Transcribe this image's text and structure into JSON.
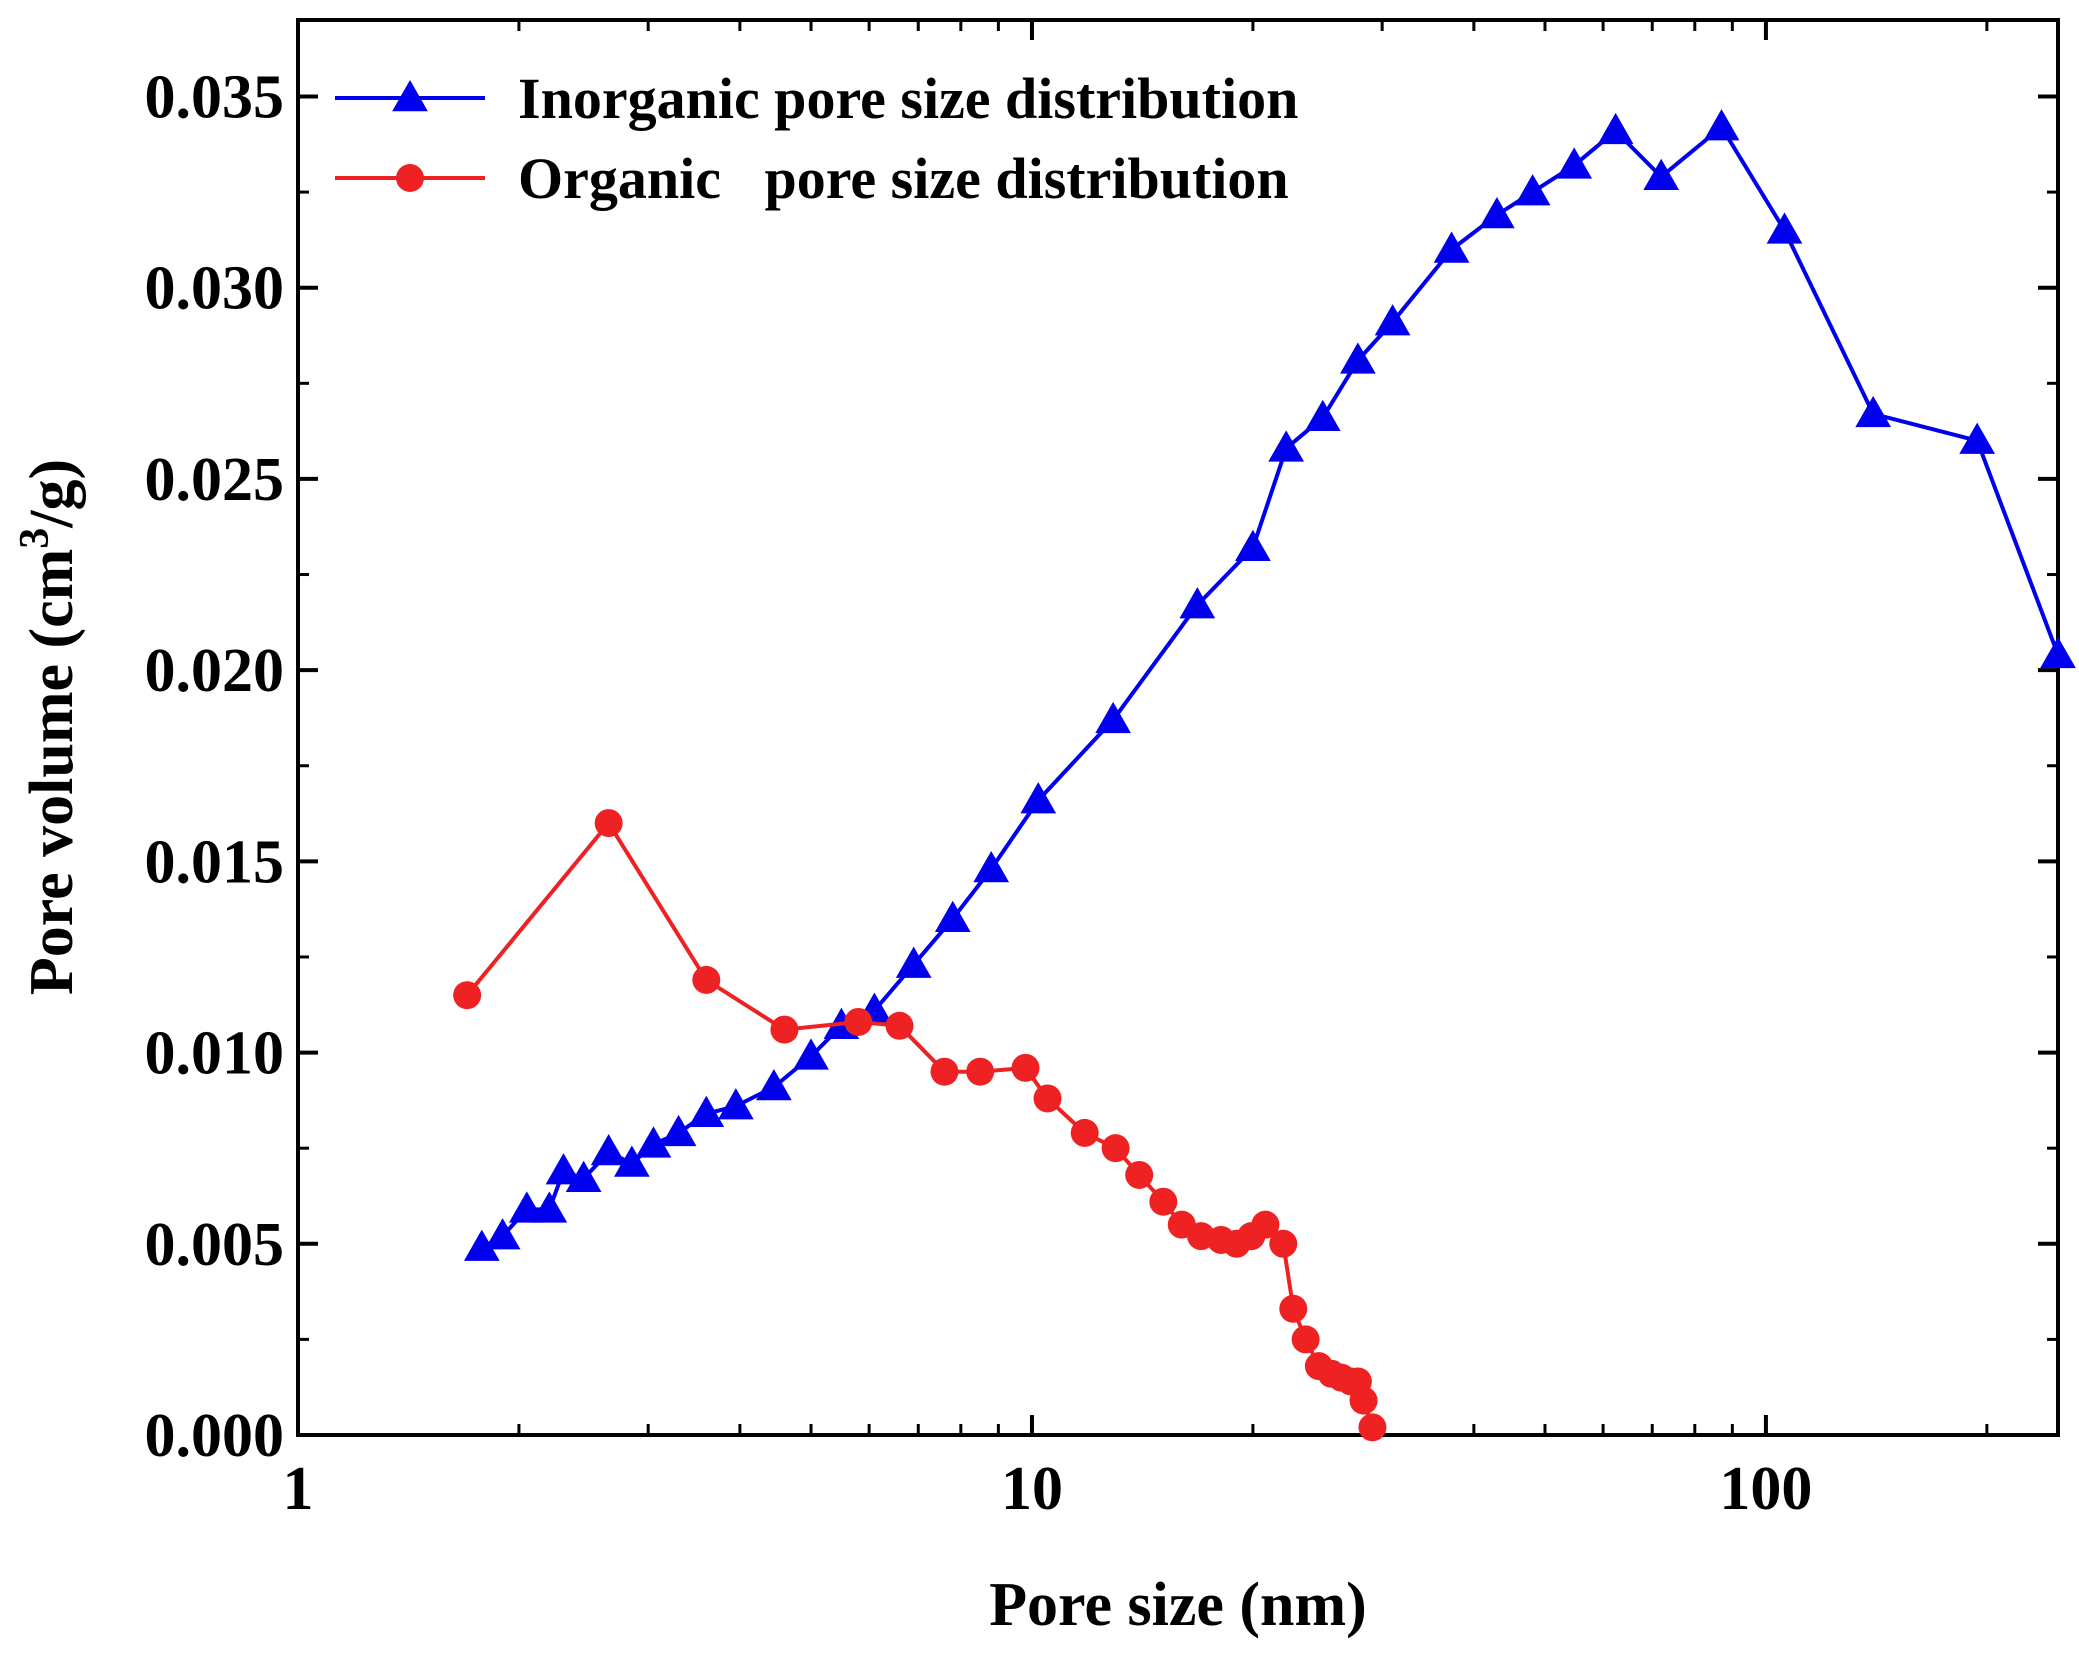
{
  "chart_data": {
    "type": "line",
    "x_scale": "log",
    "xlabel": "Pore size (nm)",
    "ylabel": {
      "prefix": "Pore volume (cm",
      "sup": "3",
      "suffix": "/g)"
    },
    "xlim": [
      1,
      250
    ],
    "ylim": [
      0,
      0.037
    ],
    "x_ticks": [
      1,
      10,
      100
    ],
    "x_tick_labels": [
      "1",
      "10",
      "100"
    ],
    "y_ticks": [
      0,
      0.005,
      0.01,
      0.015,
      0.02,
      0.025,
      0.03,
      0.035
    ],
    "y_tick_labels": [
      "0.000",
      "0.005",
      "0.010",
      "0.015",
      "0.020",
      "0.025",
      "0.030",
      "0.035"
    ],
    "legend_position": "top-left",
    "series": [
      {
        "name": "Inorganic pore size distribution",
        "color": "#0000ee",
        "marker": "triangle",
        "x": [
          1.78,
          1.9,
          2.05,
          2.2,
          2.3,
          2.45,
          2.65,
          2.85,
          3.05,
          3.3,
          3.6,
          3.95,
          4.45,
          5.0,
          5.5,
          6.1,
          6.9,
          7.8,
          8.8,
          10.2,
          12.9,
          16.8,
          20.0,
          22.2,
          24.9,
          27.8,
          31.0,
          37.3,
          43.0,
          48.1,
          54.8,
          62.4,
          72.0,
          87.0,
          106.0,
          140.0,
          194.0,
          250.0
        ],
        "y": [
          0.0049,
          0.0052,
          0.0059,
          0.0059,
          0.0069,
          0.0067,
          0.0074,
          0.0071,
          0.0076,
          0.0079,
          0.0084,
          0.0086,
          0.0091,
          0.0099,
          0.0107,
          0.0111,
          0.0123,
          0.0135,
          0.0148,
          0.0166,
          0.0187,
          0.0217,
          0.0232,
          0.0258,
          0.0266,
          0.0281,
          0.0291,
          0.031,
          0.0319,
          0.0325,
          0.0332,
          0.0341,
          0.0329,
          0.0342,
          0.0315,
          0.0267,
          0.026,
          0.0204
        ]
      },
      {
        "name": "Organic   pore size distribution",
        "color": "#ee2222",
        "marker": "circle",
        "x": [
          1.7,
          2.65,
          3.6,
          4.6,
          5.8,
          6.6,
          7.6,
          8.5,
          9.8,
          10.5,
          11.8,
          13.0,
          14.0,
          15.1,
          16.0,
          17.0,
          18.1,
          19.0,
          19.9,
          20.8,
          22.0,
          22.7,
          23.6,
          24.6,
          25.6,
          26.4,
          27.2,
          27.8,
          28.3,
          29.1
        ],
        "y": [
          0.0115,
          0.016,
          0.0119,
          0.0106,
          0.0108,
          0.0107,
          0.0095,
          0.0095,
          0.0096,
          0.0088,
          0.0079,
          0.0075,
          0.0068,
          0.0061,
          0.0055,
          0.0052,
          0.0051,
          0.005,
          0.0052,
          0.0055,
          0.005,
          0.0033,
          0.0025,
          0.0018,
          0.0016,
          0.0015,
          0.0014,
          0.0014,
          0.0009,
          0.0002
        ]
      }
    ]
  }
}
